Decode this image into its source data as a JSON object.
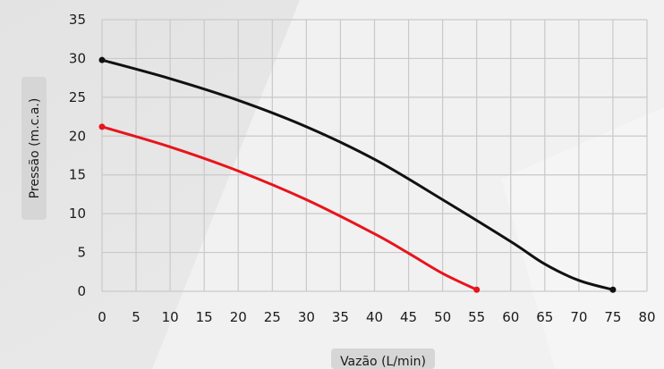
{
  "chart_data": {
    "type": "line",
    "xlabel": "Vazão (L/min)",
    "ylabel": "Pressão (m.c.a.)",
    "xlim": [
      0,
      80
    ],
    "ylim": [
      0,
      35
    ],
    "x_ticks": [
      "0",
      "5",
      "10",
      "15",
      "20",
      "25",
      "30",
      "35",
      "40",
      "45",
      "50",
      "55",
      "60",
      "65",
      "70",
      "75",
      "80"
    ],
    "y_ticks": [
      "0",
      "5",
      "10",
      "15",
      "20",
      "25",
      "30",
      "35"
    ],
    "grid": true,
    "legend": "none",
    "series": [
      {
        "color": "#111111",
        "x": [
          0,
          10,
          20,
          30,
          40,
          50,
          60,
          65,
          70,
          75
        ],
        "y": [
          29.8,
          27.4,
          24.6,
          21.2,
          17.0,
          11.8,
          6.4,
          3.5,
          1.4,
          0.2
        ]
      },
      {
        "color": "#e8141c",
        "x": [
          0,
          10,
          20,
          30,
          40,
          45,
          50,
          55
        ],
        "y": [
          21.2,
          18.6,
          15.5,
          11.8,
          7.4,
          4.9,
          2.3,
          0.2
        ]
      }
    ]
  }
}
